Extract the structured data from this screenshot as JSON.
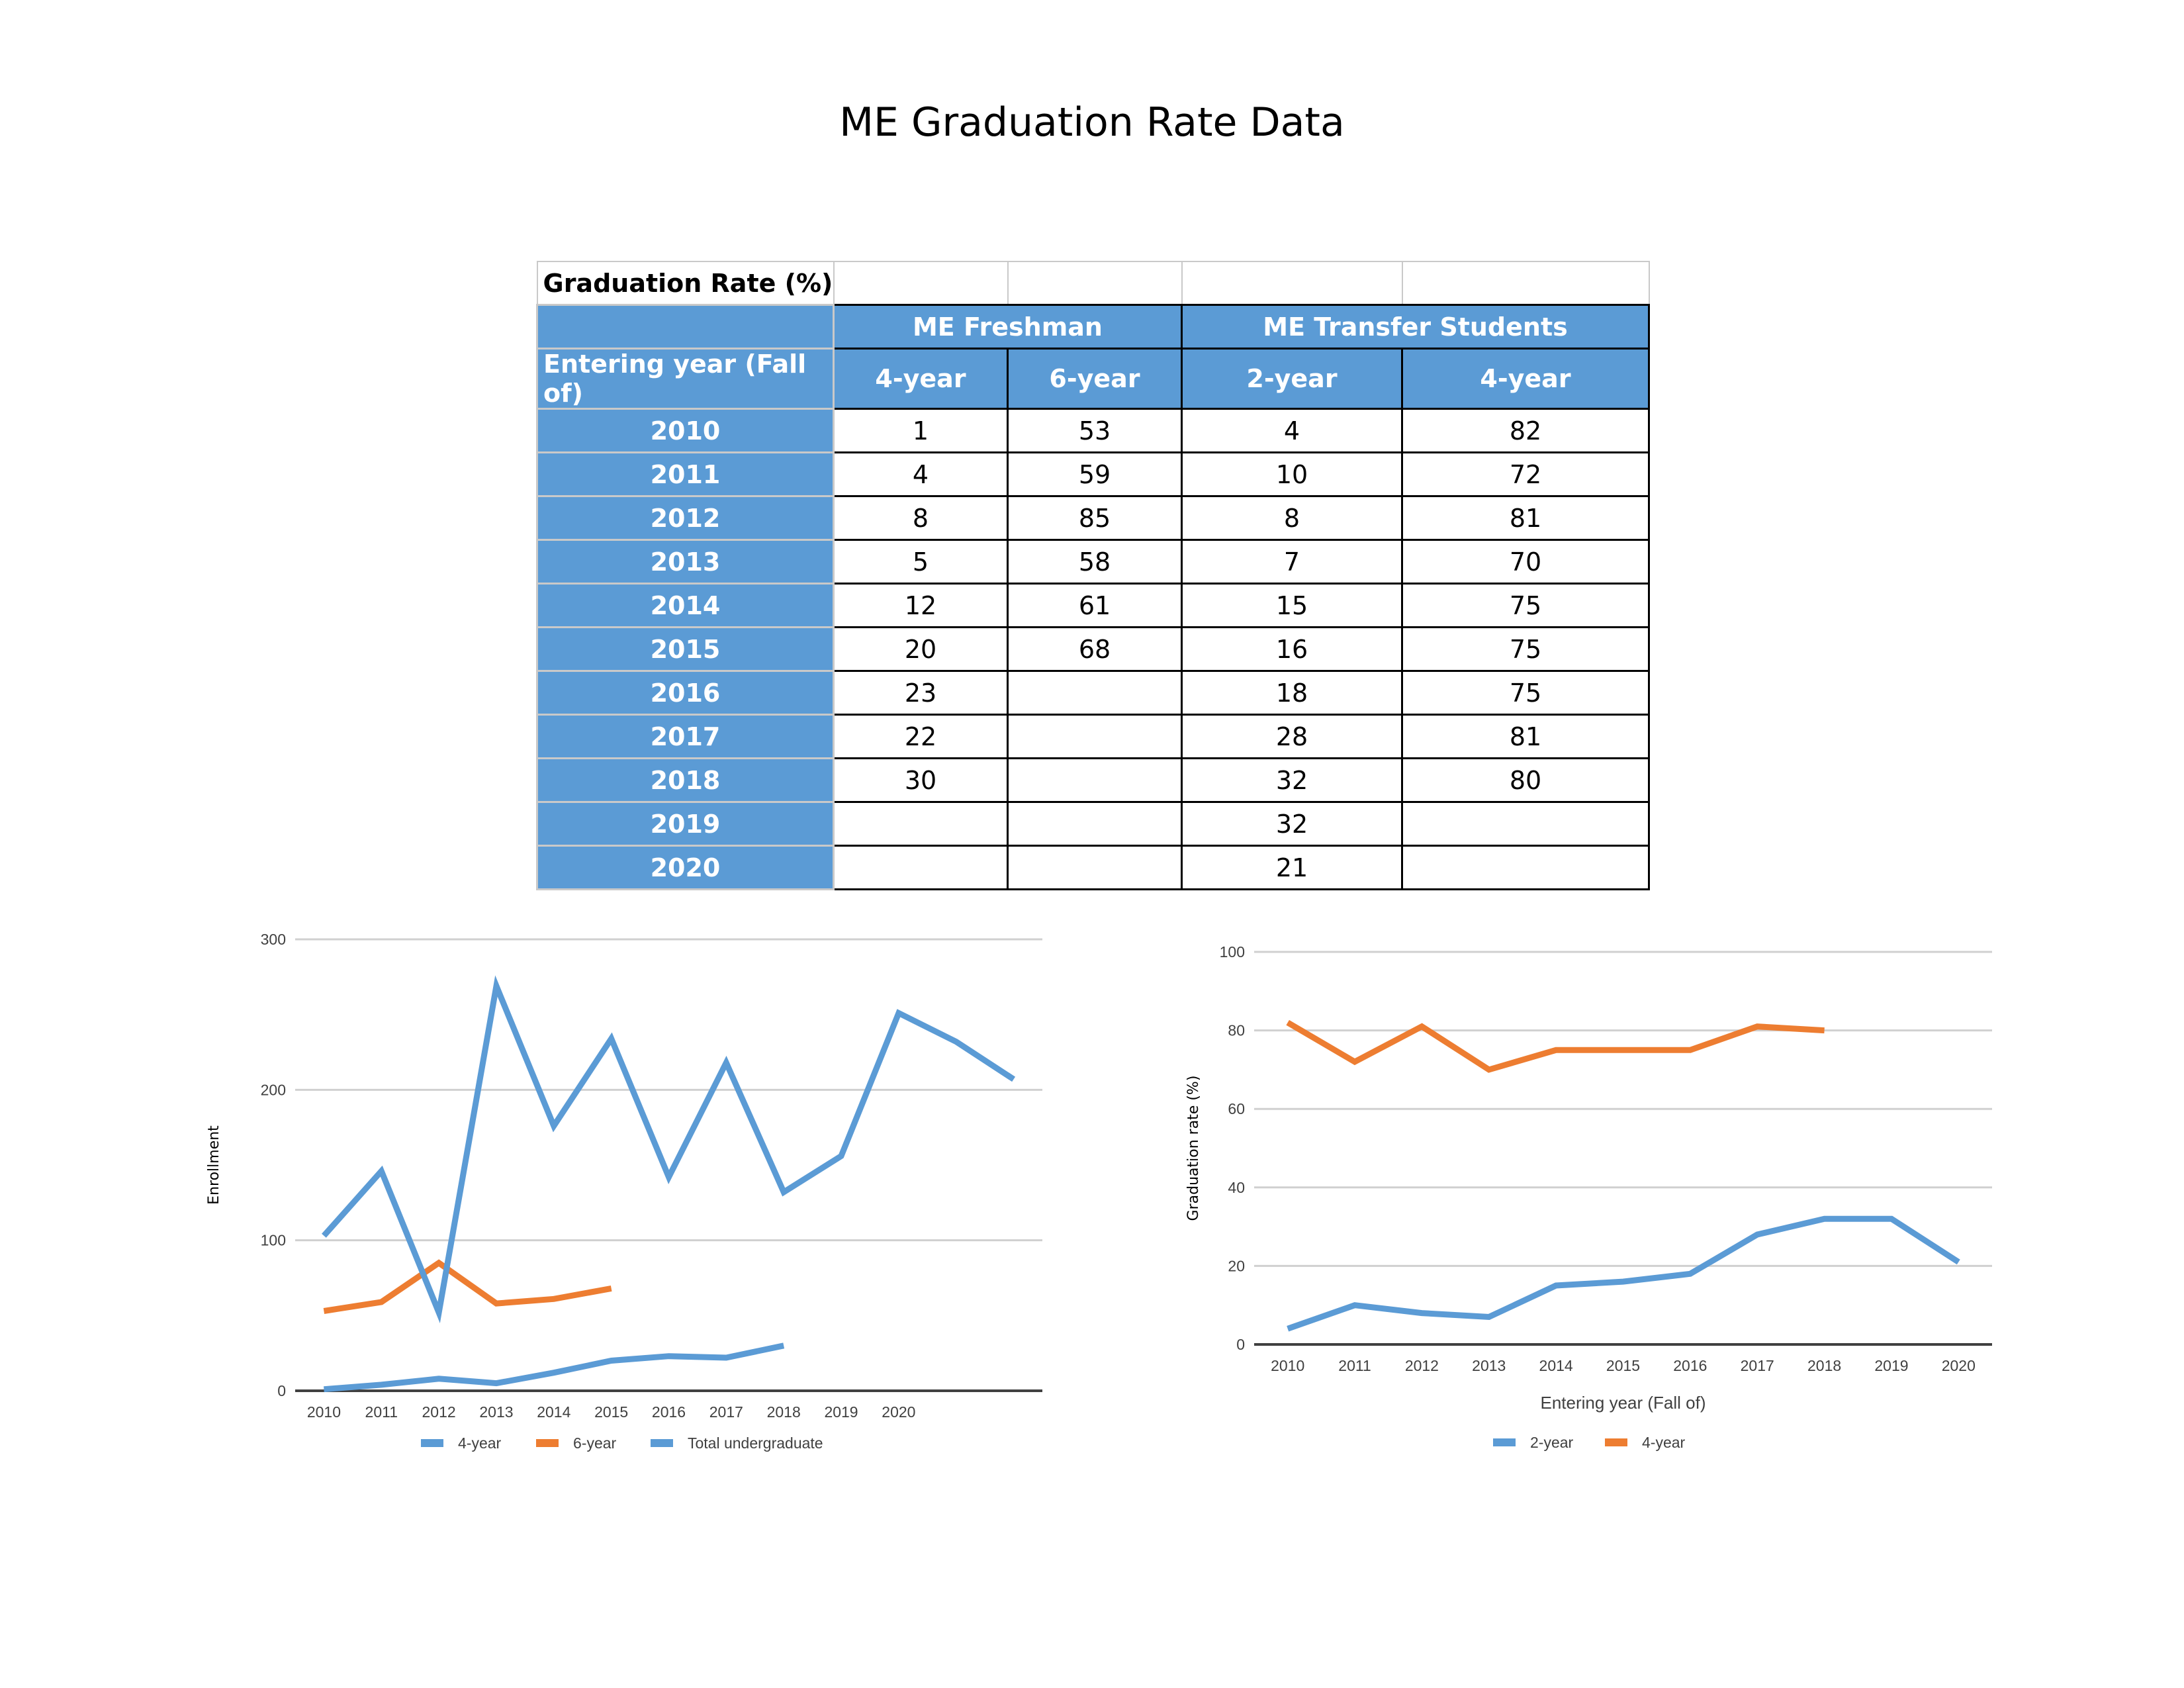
{
  "title": "ME Graduation Rate Data",
  "table": {
    "caption": "Graduation Rate (%)",
    "group_headers": [
      "ME Freshman",
      "ME Transfer Students"
    ],
    "row_header_label": "Entering year (Fall of)",
    "sub_headers": [
      "4-year",
      "6-year",
      "2-year",
      "4-year"
    ],
    "rows": [
      [
        "2010",
        "1",
        "53",
        "4",
        "82"
      ],
      [
        "2011",
        "4",
        "59",
        "10",
        "72"
      ],
      [
        "2012",
        "8",
        "85",
        "8",
        "81"
      ],
      [
        "2013",
        "5",
        "58",
        "7",
        "70"
      ],
      [
        "2014",
        "12",
        "61",
        "15",
        "75"
      ],
      [
        "2015",
        "20",
        "68",
        "16",
        "75"
      ],
      [
        "2016",
        "23",
        "",
        "18",
        "75"
      ],
      [
        "2017",
        "22",
        "",
        "28",
        "81"
      ],
      [
        "2018",
        "30",
        "",
        "32",
        "80"
      ],
      [
        "2019",
        "",
        "",
        "32",
        ""
      ],
      [
        "2020",
        "",
        "",
        "21",
        ""
      ]
    ]
  },
  "colors": {
    "header_blue": "#5b9bd5",
    "series_blue": "#5b9bd5",
    "series_orange": "#ed7d31"
  },
  "chart_data": [
    {
      "type": "line",
      "title": "",
      "xlabel": "",
      "ylabel": "Enrollment",
      "ylim": [
        0,
        300
      ],
      "yticks": [
        0,
        100,
        200,
        300
      ],
      "grid": true,
      "legend": "bottom",
      "categories": [
        "2010",
        "2011",
        "2012",
        "2013",
        "2014",
        "2015",
        "2016",
        "2017",
        "2018",
        "2019",
        "2020",
        "",
        ""
      ],
      "series": [
        {
          "name": "4-year",
          "color": "#5b9bd5",
          "values": [
            1,
            4,
            8,
            5,
            12,
            20,
            23,
            22,
            30,
            null,
            null,
            null,
            null
          ]
        },
        {
          "name": "6-year",
          "color": "#ed7d31",
          "values": [
            53,
            59,
            85,
            58,
            61,
            68,
            null,
            null,
            null,
            null,
            null,
            null,
            null
          ]
        },
        {
          "name": "Total undergraduate",
          "color": "#5b9bd5",
          "values": [
            103,
            146,
            52,
            269,
            176,
            234,
            142,
            218,
            132,
            156,
            251,
            232,
            207
          ]
        }
      ]
    },
    {
      "type": "line",
      "title": "",
      "xlabel": "Entering year (Fall of)",
      "ylabel": "Graduation rate (%)",
      "ylim": [
        0,
        100
      ],
      "yticks": [
        0,
        20,
        40,
        60,
        80,
        100
      ],
      "grid": true,
      "legend": "bottom",
      "categories": [
        "2010",
        "2011",
        "2012",
        "2013",
        "2014",
        "2015",
        "2016",
        "2017",
        "2018",
        "2019",
        "2020"
      ],
      "series": [
        {
          "name": "2-year",
          "color": "#5b9bd5",
          "values": [
            4,
            10,
            8,
            7,
            15,
            16,
            18,
            28,
            32,
            32,
            21
          ]
        },
        {
          "name": "4-year",
          "color": "#ed7d31",
          "values": [
            82,
            72,
            81,
            70,
            75,
            75,
            75,
            81,
            80,
            null,
            null
          ]
        }
      ]
    }
  ]
}
